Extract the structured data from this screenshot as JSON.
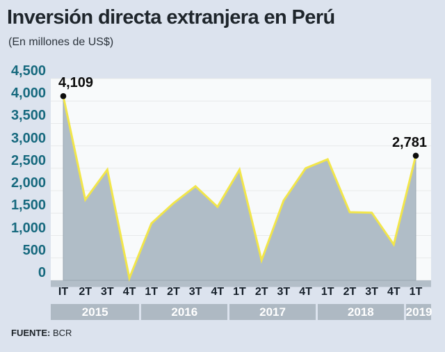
{
  "header": {
    "title": "Inversión directa extranjera en Perú",
    "subtitle": "(En millones de US$)"
  },
  "footer": {
    "source_label": "FUENTE:",
    "source_value": "BCR"
  },
  "chart_data": {
    "type": "area",
    "x": [
      "IT",
      "2T",
      "3T",
      "4T",
      "1T",
      "2T",
      "3T",
      "4T",
      "1T",
      "2T",
      "3T",
      "4T",
      "1T",
      "2T",
      "3T",
      "4T",
      "1T"
    ],
    "year_groups": [
      {
        "label": "2015",
        "span": 4
      },
      {
        "label": "2016",
        "span": 4
      },
      {
        "label": "2017",
        "span": 4
      },
      {
        "label": "2018",
        "span": 4
      },
      {
        "label": "2019",
        "span": 1
      }
    ],
    "values": [
      4109,
      1800,
      2470,
      50,
      1270,
      1720,
      2100,
      1640,
      2470,
      450,
      1780,
      2500,
      2700,
      1520,
      1510,
      800,
      2781
    ],
    "ylim": [
      0,
      4500
    ],
    "ytick_step": 500,
    "yticks": [
      "4,500",
      "4,000",
      "3,500",
      "3,000",
      "2,500",
      "2,000",
      "1,500",
      "1,000",
      "500",
      "0"
    ],
    "annotations": [
      {
        "index": 0,
        "label": "4,109",
        "align": "left"
      },
      {
        "index": 16,
        "label": "2,781",
        "align": "right"
      }
    ],
    "grid": "horizontal",
    "legend": "none",
    "colors": {
      "plot_bg": "#f8fafb",
      "gridline": "#e7e9ea",
      "area_fill": "#b0bdc7",
      "area_edge": "#9aa8b2",
      "line": "#f2e64a",
      "dot": "#0d0d0d",
      "axis_bar": "#b3bec8",
      "ytick_color": "#16697e",
      "year_band_bg": "#aeb9c3",
      "page_bg": "#dce3ee"
    }
  }
}
